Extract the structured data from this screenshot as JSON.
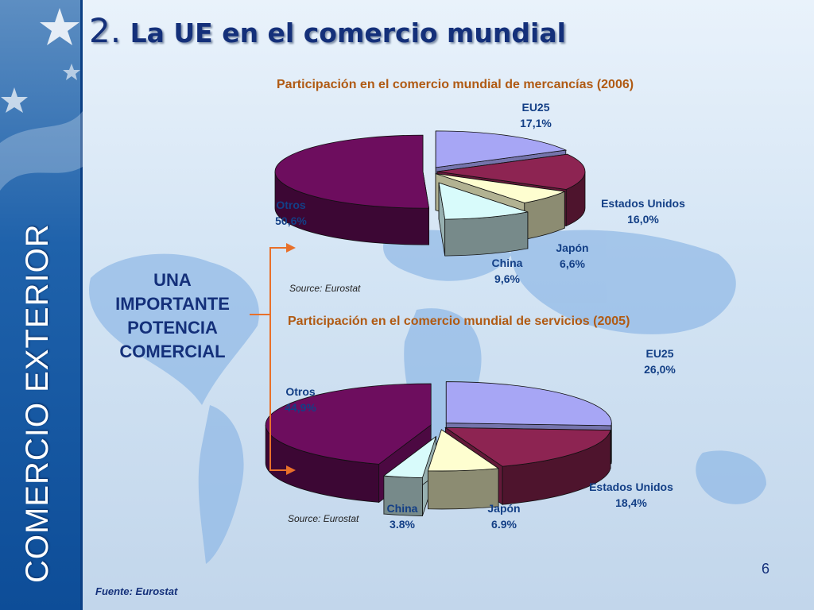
{
  "sidebar": {
    "title": "COMERCIO EXTERIOR"
  },
  "header": {
    "number": "2.",
    "title": "La UE en el comercio mundial"
  },
  "tagline": [
    "UNA",
    "IMPORTANTE",
    "POTENCIA",
    "COMERCIAL"
  ],
  "page_number": "6",
  "footer_source": "Fuente: Eurostat",
  "colors": {
    "eu25": "#a7a6f5",
    "estados_unidos": "#8d2452",
    "japon": "#fefed0",
    "china": "#d8fbfb",
    "otros": "#6d0d5e",
    "arrow": "#e8702a"
  },
  "chart_data": [
    {
      "type": "pie",
      "title": "Participación en el comercio mundial de mercancías (2006)",
      "source": "Source: Eurostat",
      "slices": [
        {
          "name": "EU25",
          "label": "17,1%",
          "value": 17.1
        },
        {
          "name": "Estados Unidos",
          "label": "16,0%",
          "value": 16.0
        },
        {
          "name": "Japón",
          "label": "6,6%",
          "value": 6.6
        },
        {
          "name": "China",
          "label": "9,6%",
          "value": 9.6
        },
        {
          "name": "Otros",
          "label": "50,6%",
          "value": 50.6
        }
      ]
    },
    {
      "type": "pie",
      "title": "Participación en el comercio mundial de servicios (2005)",
      "source": "Source: Eurostat",
      "slices": [
        {
          "name": "EU25",
          "label": "26,0%",
          "value": 26.0
        },
        {
          "name": "Estados Unidos",
          "label": "18,4%",
          "value": 18.4
        },
        {
          "name": "Japón",
          "label": "6.9%",
          "value": 6.9
        },
        {
          "name": "China",
          "label": "3.8%",
          "value": 3.8
        },
        {
          "name": "Otros",
          "label": "44,9%",
          "value": 44.9
        }
      ]
    }
  ]
}
